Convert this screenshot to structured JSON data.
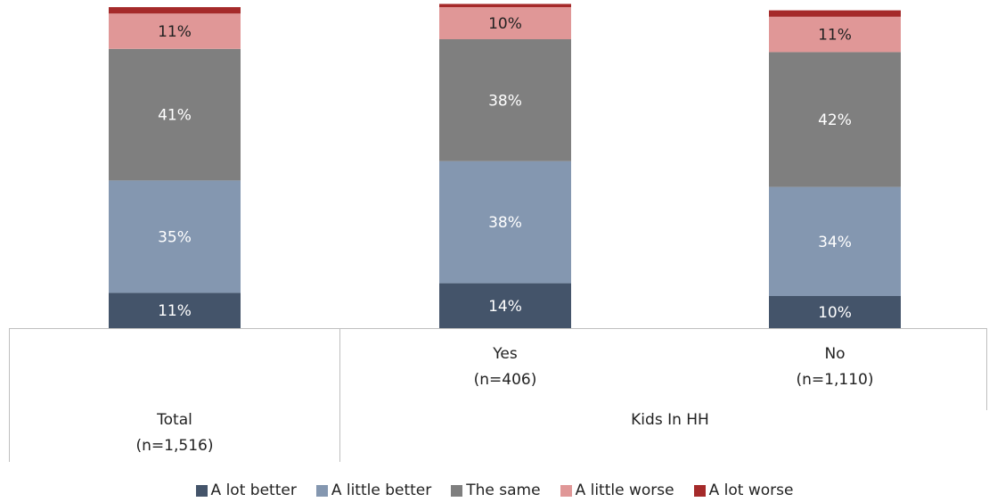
{
  "chart_data": {
    "type": "bar",
    "stacked": true,
    "percent_stacked": true,
    "categories": [
      {
        "label_lines": [
          "Total",
          "(n=1,516)"
        ]
      },
      {
        "label_lines": [
          "Yes",
          "(n=406)"
        ]
      },
      {
        "label_lines": [
          "No",
          "(n=1,110)"
        ]
      }
    ],
    "group_labels": [
      {
        "label": "Kids In HH",
        "categories": [
          1,
          2
        ]
      }
    ],
    "series": [
      {
        "name": "A lot better",
        "color": "#44546a",
        "label_color": "#ffffff",
        "values": [
          11,
          14,
          10
        ],
        "labels": [
          "11%",
          "14%",
          "10%"
        ]
      },
      {
        "name": "A little better",
        "color": "#8497b0",
        "label_color": "#ffffff",
        "values": [
          35,
          38,
          34
        ],
        "labels": [
          "35%",
          "38%",
          "34%"
        ]
      },
      {
        "name": "The same",
        "color": "#7f7f7f",
        "label_color": "#ffffff",
        "values": [
          41,
          38,
          42
        ],
        "labels": [
          "41%",
          "38%",
          "42%"
        ]
      },
      {
        "name": "A little worse",
        "color": "#e09797",
        "label_color": "#222222",
        "values": [
          11,
          10,
          11
        ],
        "labels": [
          "11%",
          "10%",
          "11%"
        ]
      },
      {
        "name": "A lot worse",
        "color": "#a52a2a",
        "label_color": "#ffffff",
        "values": [
          2,
          1,
          2
        ],
        "labels": [
          "",
          "",
          ""
        ]
      }
    ],
    "ylim": [
      0,
      100
    ],
    "grid": false,
    "legend": "bottom"
  }
}
